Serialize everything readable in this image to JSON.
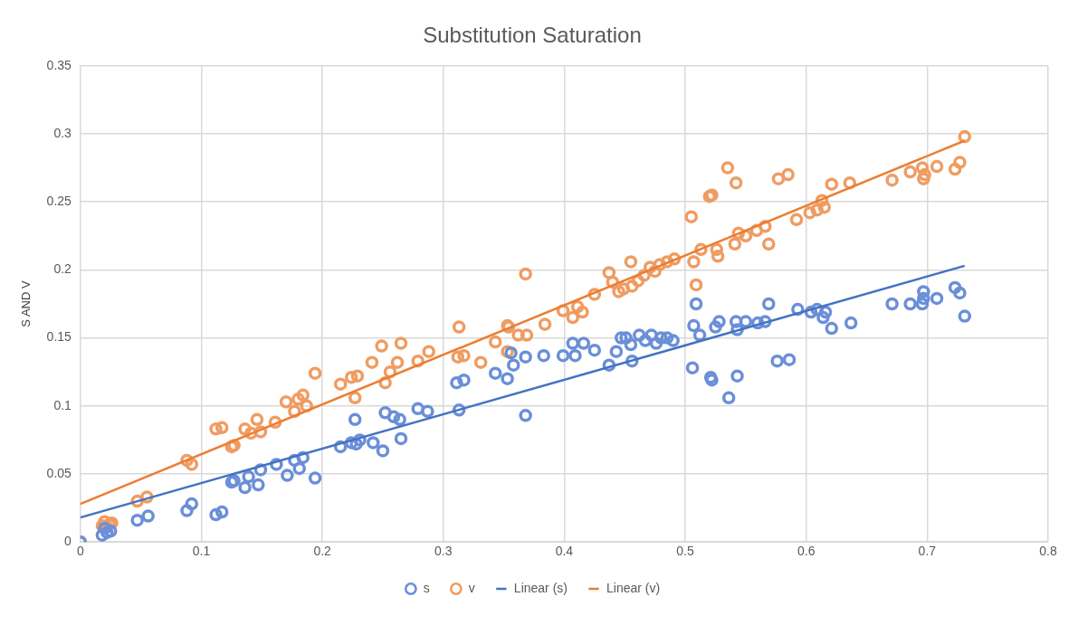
{
  "chart_data": {
    "type": "scatter",
    "title": "Substitution Saturation",
    "ylabel": "S AND V",
    "xlim": [
      0,
      0.8
    ],
    "xticks": [
      0,
      0.1,
      0.2,
      0.3,
      0.4,
      0.5,
      0.6,
      0.7,
      0.8
    ],
    "ylim": [
      0,
      0.35
    ],
    "yticks": [
      0,
      0.05,
      0.1,
      0.15,
      0.2,
      0.25,
      0.3,
      0.35
    ],
    "grid": true,
    "legend": "bottom",
    "series": [
      {
        "name": "s",
        "type": "scatter",
        "marker": "circle",
        "color": "#6a8fd8",
        "x": [
          0,
          0.018,
          0.022,
          0.025,
          0.02,
          0.047,
          0.056,
          0.088,
          0.092,
          0.112,
          0.117,
          0.125,
          0.127,
          0.136,
          0.139,
          0.147,
          0.149,
          0.162,
          0.171,
          0.177,
          0.181,
          0.184,
          0.194,
          0.215,
          0.224,
          0.227,
          0.228,
          0.231,
          0.242,
          0.25,
          0.252,
          0.259,
          0.264,
          0.265,
          0.279,
          0.287,
          0.311,
          0.313,
          0.317,
          0.343,
          0.353,
          0.358,
          0.356,
          0.368,
          0.368,
          0.383,
          0.399,
          0.407,
          0.409,
          0.416,
          0.425,
          0.437,
          0.443,
          0.447,
          0.451,
          0.455,
          0.456,
          0.462,
          0.467,
          0.472,
          0.476,
          0.48,
          0.485,
          0.49,
          0.506,
          0.507,
          0.509,
          0.512,
          0.521,
          0.522,
          0.525,
          0.528,
          0.536,
          0.542,
          0.543,
          0.543,
          0.55,
          0.56,
          0.566,
          0.569,
          0.576,
          0.586,
          0.593,
          0.604,
          0.609,
          0.614,
          0.616,
          0.621,
          0.637,
          0.671,
          0.686,
          0.696,
          0.697,
          0.697,
          0.708,
          0.723,
          0.727,
          0.731
        ],
        "values": [
          0,
          0.005,
          0.007,
          0.008,
          0.01,
          0.016,
          0.019,
          0.023,
          0.028,
          0.02,
          0.022,
          0.044,
          0.045,
          0.04,
          0.048,
          0.042,
          0.053,
          0.057,
          0.049,
          0.06,
          0.054,
          0.062,
          0.047,
          0.07,
          0.073,
          0.09,
          0.072,
          0.075,
          0.073,
          0.067,
          0.095,
          0.092,
          0.09,
          0.076,
          0.098,
          0.096,
          0.117,
          0.097,
          0.119,
          0.124,
          0.12,
          0.13,
          0.139,
          0.136,
          0.093,
          0.137,
          0.137,
          0.146,
          0.137,
          0.146,
          0.141,
          0.13,
          0.14,
          0.15,
          0.15,
          0.145,
          0.133,
          0.152,
          0.148,
          0.152,
          0.146,
          0.15,
          0.15,
          0.148,
          0.128,
          0.159,
          0.175,
          0.152,
          0.121,
          0.119,
          0.158,
          0.162,
          0.106,
          0.162,
          0.156,
          0.122,
          0.162,
          0.161,
          0.162,
          0.175,
          0.133,
          0.134,
          0.171,
          0.169,
          0.171,
          0.165,
          0.169,
          0.157,
          0.161,
          0.175,
          0.175,
          0.175,
          0.184,
          0.179,
          0.179,
          0.187,
          0.183,
          0.166
        ]
      },
      {
        "name": "v",
        "type": "scatter",
        "marker": "circle",
        "color": "#ef9c62",
        "x": [
          0,
          0.018,
          0.022,
          0.024,
          0.026,
          0.02,
          0.047,
          0.055,
          0.088,
          0.092,
          0.112,
          0.117,
          0.125,
          0.127,
          0.136,
          0.141,
          0.146,
          0.149,
          0.161,
          0.17,
          0.177,
          0.18,
          0.184,
          0.187,
          0.194,
          0.215,
          0.224,
          0.227,
          0.229,
          0.241,
          0.249,
          0.252,
          0.256,
          0.262,
          0.265,
          0.279,
          0.288,
          0.312,
          0.313,
          0.317,
          0.331,
          0.343,
          0.353,
          0.354,
          0.353,
          0.362,
          0.368,
          0.369,
          0.384,
          0.399,
          0.407,
          0.411,
          0.415,
          0.425,
          0.437,
          0.44,
          0.445,
          0.449,
          0.455,
          0.456,
          0.461,
          0.466,
          0.471,
          0.475,
          0.479,
          0.485,
          0.491,
          0.505,
          0.507,
          0.509,
          0.513,
          0.52,
          0.522,
          0.526,
          0.527,
          0.535,
          0.542,
          0.541,
          0.544,
          0.55,
          0.559,
          0.566,
          0.569,
          0.577,
          0.585,
          0.592,
          0.603,
          0.609,
          0.613,
          0.615,
          0.621,
          0.636,
          0.671,
          0.686,
          0.696,
          0.697,
          0.698,
          0.708,
          0.723,
          0.727,
          0.731
        ],
        "values": [
          0,
          0.012,
          0.011,
          0.013,
          0.014,
          0.015,
          0.03,
          0.033,
          0.06,
          0.057,
          0.083,
          0.084,
          0.07,
          0.071,
          0.083,
          0.08,
          0.09,
          0.081,
          0.088,
          0.103,
          0.096,
          0.105,
          0.108,
          0.1,
          0.124,
          0.116,
          0.121,
          0.106,
          0.122,
          0.132,
          0.144,
          0.117,
          0.125,
          0.132,
          0.146,
          0.133,
          0.14,
          0.136,
          0.158,
          0.137,
          0.132,
          0.147,
          0.159,
          0.158,
          0.14,
          0.152,
          0.197,
          0.152,
          0.16,
          0.17,
          0.165,
          0.173,
          0.169,
          0.182,
          0.198,
          0.191,
          0.184,
          0.186,
          0.206,
          0.188,
          0.192,
          0.196,
          0.202,
          0.199,
          0.204,
          0.206,
          0.208,
          0.239,
          0.206,
          0.189,
          0.215,
          0.254,
          0.255,
          0.215,
          0.21,
          0.275,
          0.264,
          0.219,
          0.227,
          0.225,
          0.229,
          0.232,
          0.219,
          0.267,
          0.27,
          0.237,
          0.242,
          0.244,
          0.251,
          0.246,
          0.263,
          0.264,
          0.266,
          0.272,
          0.275,
          0.267,
          0.27,
          0.276,
          0.274,
          0.279,
          0.298
        ]
      },
      {
        "name": "Linear (s)",
        "type": "line",
        "marker": "none",
        "line_style": "solid",
        "color": "#4472c4",
        "x": [
          0,
          0.731
        ],
        "values": [
          0.018,
          0.203
        ]
      },
      {
        "name": "Linear (v)",
        "type": "line",
        "marker": "none",
        "line_style": "solid",
        "color": "#ed7d31",
        "x": [
          0,
          0.731
        ],
        "values": [
          0.028,
          0.295
        ]
      }
    ]
  }
}
